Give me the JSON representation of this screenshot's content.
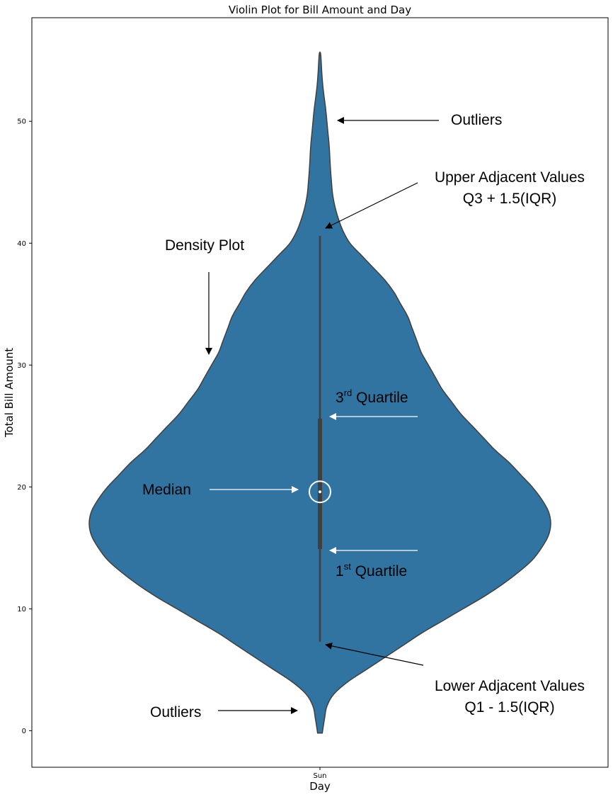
{
  "chart_data": {
    "type": "violin",
    "title": "Violin Plot for Bill Amount and Day",
    "xlabel": "Day",
    "ylabel": "Total Bill Amount",
    "categories": [
      "Sun"
    ],
    "ylim": [
      -3,
      58.5
    ],
    "yticks": [
      0,
      10,
      20,
      30,
      40,
      50
    ],
    "colors": {
      "violin": "#3274a1",
      "edge": "#3f3f3f",
      "box": "#3f3f3f",
      "median": "#ffffff"
    },
    "grid": false,
    "violin": {
      "category": "Sun",
      "min": -0.2,
      "max": 55.5,
      "whisker_low": 7.3,
      "q1": 14.9,
      "median": 19.6,
      "q3": 25.6,
      "whisker_high": 40.6,
      "density_profile": [
        [
          -0.2,
          0.01
        ],
        [
          1,
          0.02
        ],
        [
          2,
          0.03
        ],
        [
          3,
          0.06
        ],
        [
          4,
          0.12
        ],
        [
          5,
          0.2
        ],
        [
          6,
          0.28
        ],
        [
          7,
          0.36
        ],
        [
          8,
          0.44
        ],
        [
          9,
          0.53
        ],
        [
          10,
          0.62
        ],
        [
          11,
          0.71
        ],
        [
          12,
          0.79
        ],
        [
          13,
          0.86
        ],
        [
          14,
          0.92
        ],
        [
          15,
          0.96
        ],
        [
          16,
          0.99
        ],
        [
          17,
          1.0
        ],
        [
          18,
          0.99
        ],
        [
          19,
          0.96
        ],
        [
          20,
          0.92
        ],
        [
          21,
          0.87
        ],
        [
          22,
          0.82
        ],
        [
          23,
          0.76
        ],
        [
          24,
          0.71
        ],
        [
          25,
          0.66
        ],
        [
          26,
          0.61
        ],
        [
          27,
          0.57
        ],
        [
          28,
          0.53
        ],
        [
          29,
          0.5
        ],
        [
          30,
          0.47
        ],
        [
          31,
          0.44
        ],
        [
          32,
          0.42
        ],
        [
          33,
          0.4
        ],
        [
          34,
          0.38
        ],
        [
          35,
          0.35
        ],
        [
          36,
          0.32
        ],
        [
          37,
          0.28
        ],
        [
          38,
          0.23
        ],
        [
          39,
          0.18
        ],
        [
          40,
          0.13
        ],
        [
          41,
          0.1
        ],
        [
          42,
          0.08
        ],
        [
          43,
          0.065
        ],
        [
          44,
          0.055
        ],
        [
          45,
          0.05
        ],
        [
          46,
          0.046
        ],
        [
          47,
          0.043
        ],
        [
          48,
          0.04
        ],
        [
          49,
          0.035
        ],
        [
          50,
          0.03
        ],
        [
          51,
          0.025
        ],
        [
          52,
          0.018
        ],
        [
          53,
          0.012
        ],
        [
          54,
          0.008
        ],
        [
          55.5,
          0.003
        ]
      ]
    },
    "annotations": [
      {
        "key": "outliers_top",
        "lines": [
          "Outliers"
        ],
        "align": "start",
        "arrow_color": "#000000"
      },
      {
        "key": "upper_adjacent",
        "lines": [
          "Upper Adjacent Values",
          "Q3 + 1.5(IQR)"
        ],
        "align": "middle",
        "arrow_color": "#000000"
      },
      {
        "key": "density",
        "lines": [
          "Density Plot"
        ],
        "align": "start",
        "arrow_color": "#000000"
      },
      {
        "key": "q3",
        "lines": [
          "3",
          "rd",
          " Quartile"
        ],
        "align": "start",
        "arrow_color": "#ffffff"
      },
      {
        "key": "median",
        "lines": [
          "Median"
        ],
        "align": "start",
        "arrow_color": "#ffffff"
      },
      {
        "key": "q1",
        "lines": [
          "1",
          "st",
          "  Quartile"
        ],
        "align": "start",
        "arrow_color": "#ffffff"
      },
      {
        "key": "lower_adjacent",
        "lines": [
          "Lower Adjacent Values",
          "Q1 - 1.5(IQR)"
        ],
        "align": "middle",
        "arrow_color": "#000000"
      },
      {
        "key": "outliers_bottom",
        "lines": [
          "Outliers"
        ],
        "align": "start",
        "arrow_color": "#000000"
      }
    ]
  }
}
